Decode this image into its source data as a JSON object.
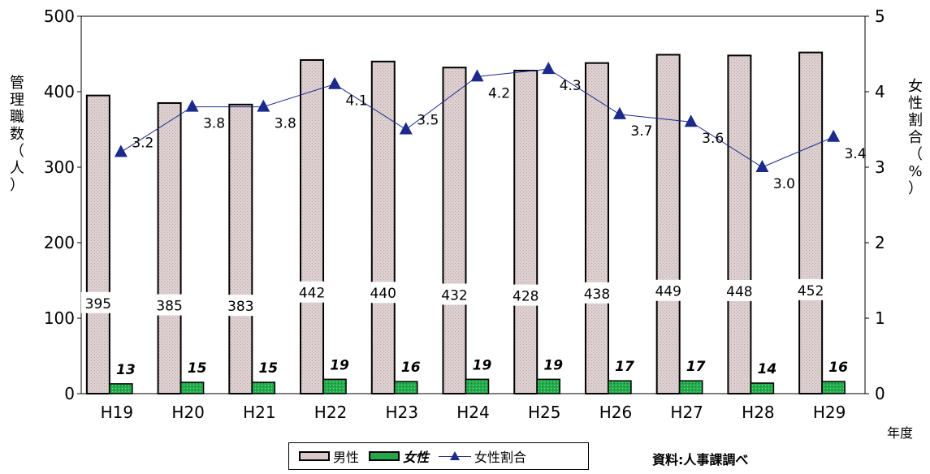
{
  "chart_data": {
    "type": "bar",
    "categories": [
      "H19",
      "H20",
      "H21",
      "H22",
      "H23",
      "H24",
      "H25",
      "H26",
      "H27",
      "H28",
      "H29"
    ],
    "series": [
      {
        "name": "男性",
        "type": "bar",
        "axis": "left",
        "values": [
          395,
          385,
          383,
          442,
          440,
          432,
          428,
          438,
          449,
          448,
          452
        ],
        "color": "#d8c8c8"
      },
      {
        "name": "女性",
        "type": "bar",
        "axis": "left",
        "values": [
          13,
          15,
          15,
          19,
          16,
          19,
          19,
          17,
          17,
          14,
          16
        ],
        "color": "#22a84a"
      },
      {
        "name": "女性割合",
        "type": "line",
        "axis": "right",
        "values": [
          3.2,
          3.8,
          3.8,
          4.1,
          3.5,
          4.2,
          4.3,
          3.7,
          3.6,
          3.0,
          3.4
        ],
        "labels": [
          "3.2",
          "3.8",
          "3.8",
          "4.1",
          "3.5",
          "4.2",
          "4.3",
          "3.7",
          "3.6",
          "3.0",
          "3.4"
        ],
        "color": "#1c2a8c"
      }
    ],
    "ylabel": "管理職数（人）",
    "y2label": "女性割合（%）",
    "xlabel": "年度",
    "ylim": [
      0,
      500
    ],
    "y2lim": [
      0,
      5
    ],
    "yticks": [
      0,
      100,
      200,
      300,
      400,
      500
    ],
    "y2ticks": [
      0,
      1,
      2,
      3,
      4,
      5
    ],
    "legend_position": "bottom"
  },
  "legend": {
    "male": "男性",
    "female": "女性",
    "ratio": "女性割合"
  },
  "source": "資料:人事課調べ",
  "xlabel_text": "年度",
  "ylabel_text": "管理職数（人）",
  "y2label_text": "女性割合（%）"
}
